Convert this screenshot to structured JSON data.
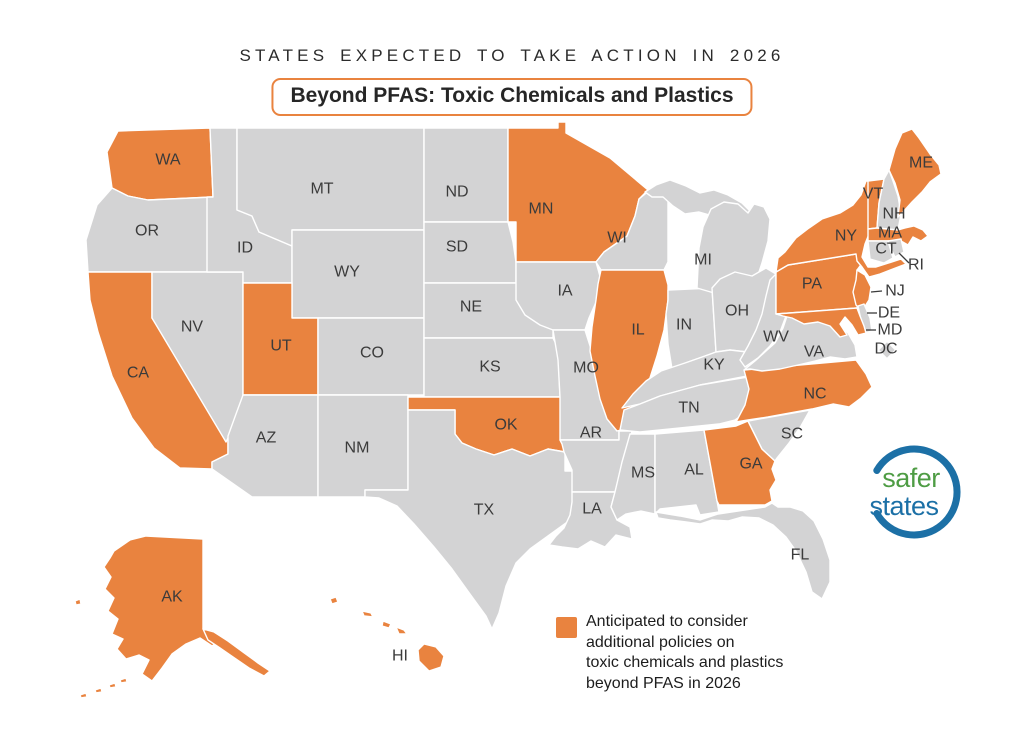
{
  "header": {
    "kicker": "STATES EXPECTED TO TAKE ACTION IN 2026",
    "title": "Beyond PFAS: Toxic Chemicals and Plastics",
    "accent_color": "#E9833F"
  },
  "legend": {
    "swatch_color": "#E9833F",
    "lines": [
      "Anticipated to consider",
      "additional policies on",
      "toxic chemicals and plastics",
      "beyond PFAS in 2026"
    ]
  },
  "logo": {
    "word_top": "safer",
    "word_bottom": "states",
    "green": "#4E9C44",
    "blue": "#1C70A6"
  },
  "map": {
    "highlight_color": "#E9833F",
    "base_color": "#D3D3D4",
    "border_color": "#FFFFFF",
    "label_color": "#3B3B3B",
    "states": [
      {
        "abbr": "WA",
        "highlighted": true
      },
      {
        "abbr": "OR",
        "highlighted": false
      },
      {
        "abbr": "CA",
        "highlighted": true
      },
      {
        "abbr": "NV",
        "highlighted": false
      },
      {
        "abbr": "ID",
        "highlighted": false
      },
      {
        "abbr": "MT",
        "highlighted": false
      },
      {
        "abbr": "WY",
        "highlighted": false
      },
      {
        "abbr": "UT",
        "highlighted": true
      },
      {
        "abbr": "CO",
        "highlighted": false
      },
      {
        "abbr": "AZ",
        "highlighted": false
      },
      {
        "abbr": "NM",
        "highlighted": false
      },
      {
        "abbr": "ND",
        "highlighted": false
      },
      {
        "abbr": "SD",
        "highlighted": false
      },
      {
        "abbr": "NE",
        "highlighted": false
      },
      {
        "abbr": "KS",
        "highlighted": false
      },
      {
        "abbr": "OK",
        "highlighted": true
      },
      {
        "abbr": "TX",
        "highlighted": false
      },
      {
        "abbr": "MN",
        "highlighted": true
      },
      {
        "abbr": "IA",
        "highlighted": false
      },
      {
        "abbr": "MO",
        "highlighted": false
      },
      {
        "abbr": "AR",
        "highlighted": false
      },
      {
        "abbr": "LA",
        "highlighted": false
      },
      {
        "abbr": "WI",
        "highlighted": false
      },
      {
        "abbr": "IL",
        "highlighted": true
      },
      {
        "abbr": "IN",
        "highlighted": false
      },
      {
        "abbr": "MI",
        "highlighted": false
      },
      {
        "abbr": "OH",
        "highlighted": false
      },
      {
        "abbr": "KY",
        "highlighted": false
      },
      {
        "abbr": "TN",
        "highlighted": false
      },
      {
        "abbr": "MS",
        "highlighted": false
      },
      {
        "abbr": "AL",
        "highlighted": false
      },
      {
        "abbr": "GA",
        "highlighted": true
      },
      {
        "abbr": "FL",
        "highlighted": false
      },
      {
        "abbr": "SC",
        "highlighted": false
      },
      {
        "abbr": "NC",
        "highlighted": true
      },
      {
        "abbr": "VA",
        "highlighted": false
      },
      {
        "abbr": "WV",
        "highlighted": false
      },
      {
        "abbr": "PA",
        "highlighted": true
      },
      {
        "abbr": "NY",
        "highlighted": true
      },
      {
        "abbr": "NJ",
        "highlighted": true
      },
      {
        "abbr": "DE",
        "highlighted": false
      },
      {
        "abbr": "MD",
        "highlighted": true
      },
      {
        "abbr": "DC",
        "highlighted": false
      },
      {
        "abbr": "VT",
        "highlighted": true
      },
      {
        "abbr": "NH",
        "highlighted": false
      },
      {
        "abbr": "MA",
        "highlighted": true
      },
      {
        "abbr": "CT",
        "highlighted": false
      },
      {
        "abbr": "RI",
        "highlighted": false
      },
      {
        "abbr": "ME",
        "highlighted": true
      },
      {
        "abbr": "AK",
        "highlighted": true
      },
      {
        "abbr": "HI",
        "highlighted": true
      }
    ]
  }
}
